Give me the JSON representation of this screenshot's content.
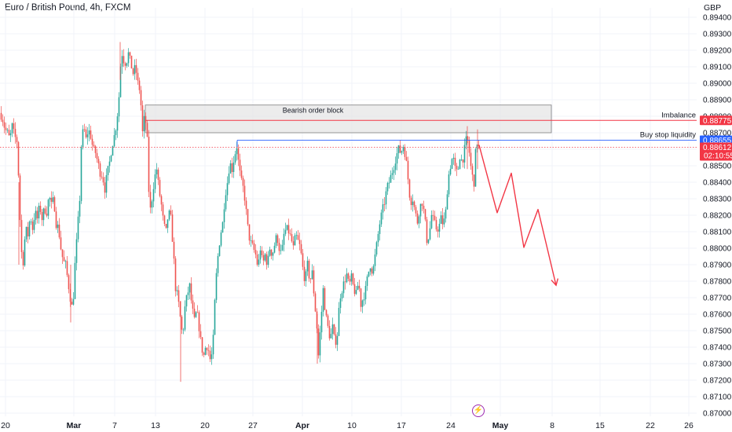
{
  "header": {
    "symbol": "Euro / British Pound, 4h, FXCM",
    "currency": "GBP"
  },
  "indicator_icon": "lightning-icon",
  "colors": {
    "up": "#26a69a",
    "down": "#ef5350",
    "red_accent": "#f23645",
    "blue_accent": "#2962ff",
    "block_fill": "#e6e6e6",
    "grid": "#f0f3fa"
  },
  "chart_data": {
    "type": "candlestick",
    "title": "Euro / British Pound, 4h, FXCM",
    "ylabel": "GBP",
    "ylim": [
      0.8696,
      0.8945
    ],
    "y_ticks": [
      0.87,
      0.871,
      0.872,
      0.873,
      0.874,
      0.875,
      0.876,
      0.877,
      0.878,
      0.879,
      0.88,
      0.881,
      0.882,
      0.883,
      0.884,
      0.885,
      0.886,
      0.887,
      0.888,
      0.889,
      0.89,
      0.891,
      0.892,
      0.893,
      0.894
    ],
    "y_tick_labels": [
      "0.87000",
      "0.87100",
      "0.87200",
      "0.87300",
      "0.87400",
      "0.87500",
      "0.87600",
      "0.87700",
      "0.87800",
      "0.87900",
      "0.88000",
      "0.88100",
      "0.88200",
      "0.88300",
      "0.88400",
      "0.88500",
      "0.88600",
      "0.88700",
      "0.88800",
      "0.88900",
      "0.89000",
      "0.89100",
      "0.89200",
      "0.89300",
      "0.89400"
    ],
    "x_ticks": [
      {
        "label": "20",
        "bold": false
      },
      {
        "label": "Mar",
        "bold": true
      },
      {
        "label": "7",
        "bold": false
      },
      {
        "label": "13",
        "bold": false
      },
      {
        "label": "20",
        "bold": false
      },
      {
        "label": "27",
        "bold": false
      },
      {
        "label": "Apr",
        "bold": true
      },
      {
        "label": "10",
        "bold": false
      },
      {
        "label": "17",
        "bold": false
      },
      {
        "label": "24",
        "bold": false
      },
      {
        "label": "May",
        "bold": true
      },
      {
        "label": "8",
        "bold": false
      },
      {
        "label": "15",
        "bold": false
      },
      {
        "label": "22",
        "bold": false
      },
      {
        "label": "26",
        "bold": false
      }
    ],
    "price_path": [
      [
        0,
        0.8882
      ],
      [
        3,
        0.8878
      ],
      [
        6,
        0.8872
      ],
      [
        9,
        0.887
      ],
      [
        12,
        0.8866
      ],
      [
        15,
        0.8874
      ],
      [
        18,
        0.8868
      ],
      [
        21,
        0.8865
      ],
      [
        24,
        0.8835
      ],
      [
        26,
        0.88
      ],
      [
        29,
        0.8792
      ],
      [
        32,
        0.8812
      ],
      [
        35,
        0.8808
      ],
      [
        38,
        0.882
      ],
      [
        41,
        0.8812
      ],
      [
        44,
        0.8822
      ],
      [
        47,
        0.8818
      ],
      [
        50,
        0.8826
      ],
      [
        53,
        0.8818
      ],
      [
        56,
        0.8824
      ],
      [
        59,
        0.8822
      ],
      [
        62,
        0.8832
      ],
      [
        65,
        0.8826
      ],
      [
        68,
        0.883
      ],
      [
        71,
        0.8815
      ],
      [
        74,
        0.8812
      ],
      [
        77,
        0.88
      ],
      [
        80,
        0.8792
      ],
      [
        83,
        0.879
      ],
      [
        86,
        0.878
      ],
      [
        89,
        0.877
      ],
      [
        92,
        0.8762
      ],
      [
        95,
        0.879
      ],
      [
        98,
        0.881
      ],
      [
        101,
        0.883
      ],
      [
        103,
        0.8862
      ],
      [
        106,
        0.8874
      ],
      [
        109,
        0.8866
      ],
      [
        112,
        0.8872
      ],
      [
        115,
        0.8868
      ],
      [
        118,
        0.886
      ],
      [
        121,
        0.8858
      ],
      [
        124,
        0.8852
      ],
      [
        127,
        0.8846
      ],
      [
        130,
        0.8844
      ],
      [
        133,
        0.8836
      ],
      [
        136,
        0.8845
      ],
      [
        139,
        0.8852
      ],
      [
        142,
        0.8862
      ],
      [
        145,
        0.8868
      ],
      [
        148,
        0.8876
      ],
      [
        151,
        0.8892
      ],
      [
        154,
        0.892
      ],
      [
        157,
        0.8914
      ],
      [
        160,
        0.8912
      ],
      [
        163,
        0.8918
      ],
      [
        166,
        0.8912
      ],
      [
        169,
        0.8906
      ],
      [
        172,
        0.891
      ],
      [
        175,
        0.89
      ],
      [
        178,
        0.8895
      ],
      [
        181,
        0.887
      ],
      [
        184,
        0.8882
      ],
      [
        187,
        0.8865
      ],
      [
        190,
        0.882
      ],
      [
        193,
        0.883
      ],
      [
        196,
        0.8842
      ],
      [
        199,
        0.8848
      ],
      [
        202,
        0.8835
      ],
      [
        205,
        0.8826
      ],
      [
        208,
        0.8814
      ],
      [
        211,
        0.881
      ],
      [
        214,
        0.8822
      ],
      [
        217,
        0.8818
      ],
      [
        220,
        0.88
      ],
      [
        223,
        0.8776
      ],
      [
        226,
        0.877
      ],
      [
        229,
        0.8758
      ],
      [
        232,
        0.8746
      ],
      [
        235,
        0.8764
      ],
      [
        238,
        0.8772
      ],
      [
        241,
        0.8777
      ],
      [
        244,
        0.8764
      ],
      [
        247,
        0.8756
      ],
      [
        250,
        0.8762
      ],
      [
        253,
        0.8752
      ],
      [
        256,
        0.874
      ],
      [
        259,
        0.8735
      ],
      [
        262,
        0.8742
      ],
      [
        265,
        0.8738
      ],
      [
        268,
        0.873
      ],
      [
        271,
        0.8745
      ],
      [
        274,
        0.8778
      ],
      [
        277,
        0.8795
      ],
      [
        280,
        0.8808
      ],
      [
        283,
        0.8815
      ],
      [
        286,
        0.8832
      ],
      [
        289,
        0.884
      ],
      [
        292,
        0.8852
      ],
      [
        295,
        0.8848
      ],
      [
        298,
        0.8856
      ],
      [
        301,
        0.8862
      ],
      [
        304,
        0.8848
      ],
      [
        307,
        0.884
      ],
      [
        310,
        0.8835
      ],
      [
        313,
        0.8822
      ],
      [
        316,
        0.8808
      ],
      [
        319,
        0.8803
      ],
      [
        322,
        0.88
      ],
      [
        325,
        0.8796
      ],
      [
        328,
        0.8788
      ],
      [
        331,
        0.88
      ],
      [
        334,
        0.879
      ],
      [
        337,
        0.8796
      ],
      [
        340,
        0.879
      ],
      [
        343,
        0.88
      ],
      [
        346,
        0.8796
      ],
      [
        349,
        0.8802
      ],
      [
        352,
        0.8808
      ],
      [
        355,
        0.88
      ],
      [
        358,
        0.8796
      ],
      [
        361,
        0.8808
      ],
      [
        364,
        0.8812
      ],
      [
        367,
        0.881
      ],
      [
        370,
        0.8806
      ],
      [
        373,
        0.88
      ],
      [
        376,
        0.8808
      ],
      [
        379,
        0.8804
      ],
      [
        382,
        0.88
      ],
      [
        385,
        0.8788
      ],
      [
        388,
        0.878
      ],
      [
        391,
        0.879
      ],
      [
        394,
        0.878
      ],
      [
        397,
        0.8785
      ],
      [
        400,
        0.8768
      ],
      [
        403,
        0.8752
      ],
      [
        405,
        0.8735
      ],
      [
        408,
        0.8755
      ],
      [
        411,
        0.8775
      ],
      [
        414,
        0.876
      ],
      [
        417,
        0.8752
      ],
      [
        420,
        0.8745
      ],
      [
        423,
        0.8752
      ],
      [
        426,
        0.8742
      ],
      [
        429,
        0.8748
      ],
      [
        432,
        0.877
      ],
      [
        435,
        0.8775
      ],
      [
        438,
        0.878
      ],
      [
        441,
        0.8784
      ],
      [
        444,
        0.8777
      ],
      [
        447,
        0.8782
      ],
      [
        450,
        0.8775
      ],
      [
        453,
        0.8772
      ],
      [
        456,
        0.878
      ],
      [
        459,
        0.8766
      ],
      [
        462,
        0.877
      ],
      [
        465,
        0.8775
      ],
      [
        468,
        0.8784
      ],
      [
        471,
        0.879
      ],
      [
        474,
        0.8785
      ],
      [
        477,
        0.8795
      ],
      [
        480,
        0.8805
      ],
      [
        483,
        0.8815
      ],
      [
        486,
        0.8822
      ],
      [
        489,
        0.8828
      ],
      [
        492,
        0.8836
      ],
      [
        495,
        0.884
      ],
      [
        498,
        0.8845
      ],
      [
        501,
        0.885
      ],
      [
        504,
        0.8856
      ],
      [
        507,
        0.886
      ],
      [
        510,
        0.8858
      ],
      [
        513,
        0.8862
      ],
      [
        516,
        0.8856
      ],
      [
        519,
        0.8842
      ],
      [
        522,
        0.8828
      ],
      [
        525,
        0.883
      ],
      [
        528,
        0.8822
      ],
      [
        531,
        0.8816
      ],
      [
        534,
        0.8825
      ],
      [
        537,
        0.8828
      ],
      [
        540,
        0.882
      ],
      [
        543,
        0.8805
      ],
      [
        546,
        0.8808
      ],
      [
        549,
        0.882
      ],
      [
        552,
        0.8816
      ],
      [
        555,
        0.8812
      ],
      [
        558,
        0.8812
      ],
      [
        561,
        0.8818
      ],
      [
        564,
        0.8814
      ],
      [
        567,
        0.8822
      ],
      [
        570,
        0.8842
      ],
      [
        573,
        0.885
      ],
      [
        576,
        0.8856
      ],
      [
        579,
        0.8848
      ],
      [
        582,
        0.8845
      ],
      [
        585,
        0.8856
      ],
      [
        588,
        0.8852
      ],
      [
        591,
        0.886
      ],
      [
        594,
        0.8868
      ],
      [
        597,
        0.8858
      ],
      [
        600,
        0.8845
      ],
      [
        603,
        0.884
      ],
      [
        606,
        0.8866
      ],
      [
        609,
        0.8861
      ]
    ],
    "annotations": {
      "bearish_order_block": {
        "label": "Bearish order block",
        "x_start": 185,
        "x_end": 702,
        "y_top": 0.88868,
        "y_bottom": 0.887
      },
      "imbalance": {
        "label": "Imbalance",
        "price": 0.88775,
        "price_label": "0.88775",
        "x_start": 185
      },
      "buy_stop_liquidity": {
        "label": "Buy stop liquidity",
        "price": 0.88655,
        "price_label": "0.88655",
        "x_start": 302
      },
      "current_price": {
        "price": 0.88612,
        "price_label": "0.88612",
        "countdown": "02:10:55"
      },
      "projection": [
        [
          610,
          0.88625
        ],
        [
          633,
          0.88215
        ],
        [
          651,
          0.88455
        ],
        [
          667,
          0.88005
        ],
        [
          685,
          0.88235
        ],
        [
          708,
          0.87775
        ]
      ]
    }
  }
}
